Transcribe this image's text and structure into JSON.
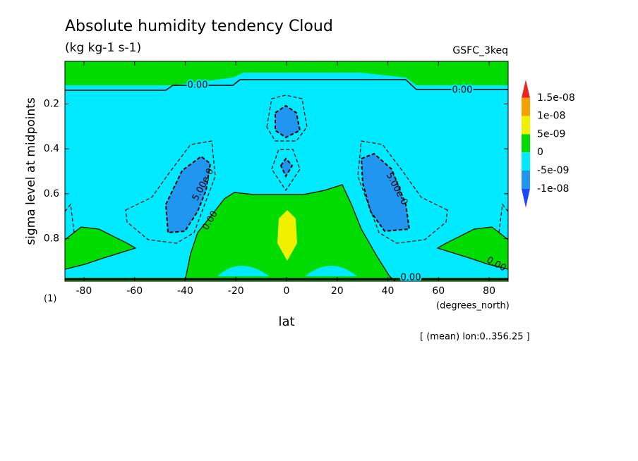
{
  "chart_data": {
    "type": "contour",
    "title": "Absolute humidity tendency Cloud",
    "subtitle": "(kg kg-1 s-1)",
    "model_label": "GSFC_3keq",
    "xlabel": "lat",
    "ylabel": "sigma level at midpoints",
    "x_unit": "(degrees_north)",
    "corner_label": "(1)",
    "footnote": "[ (mean) lon:0..356.25 ]",
    "xlim": [
      -87.5,
      87.5
    ],
    "xticks": [
      -80,
      -60,
      -40,
      -20,
      0,
      20,
      40,
      60,
      80
    ],
    "ylim": [
      0.99,
      0.01
    ],
    "yticks": [
      0.2,
      0.4,
      0.6,
      0.8
    ],
    "contour_labels": [
      "0.00",
      "0.00",
      "5.00e-0",
      "5.00e-0",
      "0.00",
      "0.00",
      "0.00"
    ],
    "colorbar": {
      "levels": [
        {
          "value": 1.5e-08,
          "label": "1.5e-08"
        },
        {
          "value": 1e-08,
          "label": "1e-08"
        },
        {
          "value": 5e-09,
          "label": "5e-09"
        },
        0,
        {
          "value": -5e-09,
          "label": "-5e-09"
        },
        {
          "value": -1e-08,
          "label": "-1e-08"
        }
      ],
      "colors": [
        "#e8261e",
        "#f5a000",
        "#f0f000",
        "#00dc00",
        "#00eaff",
        "#2096f0",
        "#1e46ff"
      ]
    }
  }
}
